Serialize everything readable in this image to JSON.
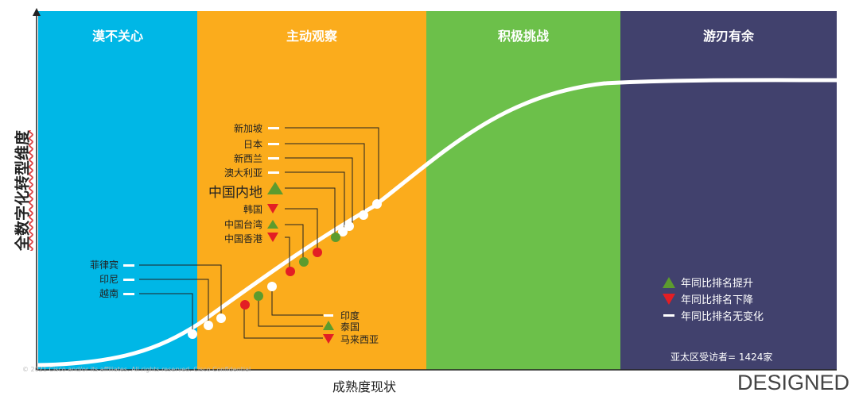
{
  "zones": [
    {
      "title": "漠不关心",
      "color": "#00b7e6"
    },
    {
      "title": "主动观察",
      "color": "#fbac1c"
    },
    {
      "title": "积极挑战",
      "color": "#6cc04a"
    },
    {
      "title": "游刃有余",
      "color": "#41416d"
    }
  ],
  "axes": {
    "y_label": "全数字化转型维度",
    "x_label": "成熟度现状"
  },
  "left_markers": [
    {
      "label": "新加坡",
      "status": "unchanged"
    },
    {
      "label": "日本",
      "status": "unchanged"
    },
    {
      "label": "新西兰",
      "status": "unchanged"
    },
    {
      "label": "澳大利亚",
      "status": "unchanged"
    },
    {
      "label": "中国内地",
      "status": "up"
    },
    {
      "label": "韩国",
      "status": "down"
    },
    {
      "label": "中国台湾",
      "status": "up"
    },
    {
      "label": "中国香港",
      "status": "down"
    },
    {
      "label": "菲律宾",
      "status": "unchanged"
    },
    {
      "label": "印尼",
      "status": "unchanged"
    },
    {
      "label": "越南",
      "status": "unchanged"
    }
  ],
  "right_markers": [
    {
      "label": "印度",
      "status": "unchanged"
    },
    {
      "label": "泰国",
      "status": "up"
    },
    {
      "label": "马来西亚",
      "status": "down"
    }
  ],
  "legend": [
    {
      "symbol": "up",
      "label": "年同比排名提升"
    },
    {
      "symbol": "down",
      "label": "年同比排名下降"
    },
    {
      "symbol": "unchanged",
      "label": "年同比排名无变化"
    }
  ],
  "respondents": "亚太区受访者= 1424家",
  "brand": "DESIGNED",
  "copyright": "© 2021 Cisco and/or its affiliates. All rights reserved. Cisco Confidential",
  "colors": {
    "up": "#5c9b2e",
    "down": "#e31e24",
    "unchanged": "#ffffff"
  }
}
